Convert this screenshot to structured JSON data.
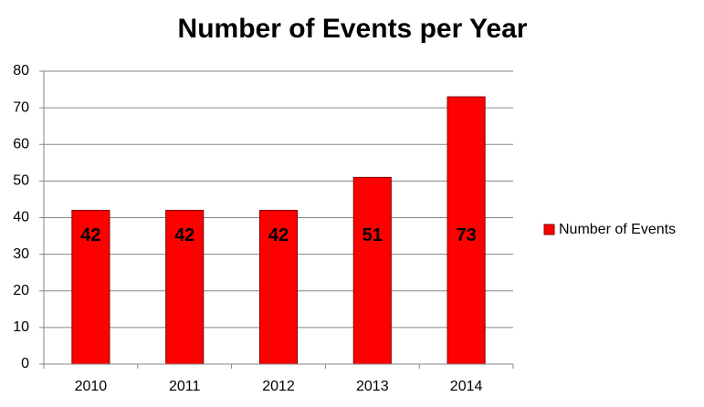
{
  "chart_data": {
    "type": "bar",
    "title": "Number of Events per Year",
    "categories": [
      "2010",
      "2011",
      "2012",
      "2013",
      "2014"
    ],
    "series": [
      {
        "name": "Number of Events",
        "color": "#ff0000",
        "values": [
          42,
          42,
          42,
          51,
          73
        ]
      }
    ],
    "ylim": [
      0,
      80
    ],
    "yticks": [
      0,
      10,
      20,
      30,
      40,
      50,
      60,
      70,
      80
    ],
    "grid": true,
    "legend": "right"
  }
}
